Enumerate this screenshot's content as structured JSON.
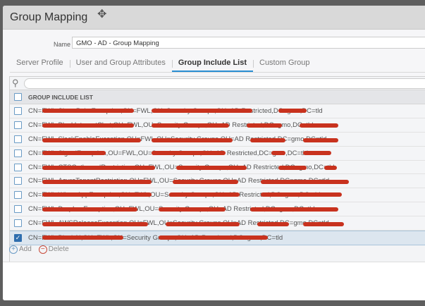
{
  "dialog": {
    "title": "Group Mapping",
    "move_icon": "move-icon"
  },
  "name": {
    "label": "Name",
    "value": "GMO - AD - Group Mapping"
  },
  "tabs": [
    {
      "label": "Server Profile",
      "active": false
    },
    {
      "label": "User and Group Attributes",
      "active": false
    },
    {
      "label": "Group Include List",
      "active": true
    },
    {
      "label": "Custom Group",
      "active": false
    }
  ],
  "table": {
    "search_placeholder": "",
    "header": "GROUP INCLUDE LIST",
    "rows": [
      {
        "text": "CN=FWL-SharePointException,OU=FWL,OU=Security Groups,OU=AD Restricted,DC=gmo,DC=tld",
        "checked": false
      },
      {
        "text": "CN=FWL-BlockInternetChat,OU=FWL,OU=Security Groups,OU=AD Restricted,DC=gmo,DC=tld",
        "checked": false
      },
      {
        "text": "CN=FWL-SlackEnableException,OU=FWL,OU=Security Groups,OU=AD Restricted,DC=gmo,DC=tld",
        "checked": false
      },
      {
        "text": "CN=FWL-SignalException,OU=FWL,OU=Security Groups,OU=AD Restricted,DC=gmo,DC=tld",
        "checked": false
      },
      {
        "text": "CN=FWL-CTSOutboundRestriction,OU=FWL,OU=Security Groups,OU=AD Restricted,DC=gmo,DC=tld",
        "checked": false
      },
      {
        "text": "CN=FWL-AzureTenantRestriction,OU=FWL,OU=Security Groups,OU=AD Restricted,DC=gmo,DC=tld",
        "checked": false
      },
      {
        "text": "CN=FWL-WhatsAppException,OU=FWL,OU=Security Groups,OU=AD Restricted,DC=gmo,DC=tld",
        "checked": false
      },
      {
        "text": "CN=FWL-DropboxException,OU=FWL,OU=Security Groups,OU=AD Restricted,DC=gmo,DC=tld",
        "checked": false
      },
      {
        "text": "CN=FWL-AWSReleaseException,OU=FWL,OU=Security Groups,OU=AD Restricted,DC=gmo,DC=tld",
        "checked": false
      },
      {
        "text": "CN=FWL-BlockAI,OU=FWL,OU=Security Groups,OU=AD Restricted,DC=gmo,DC=tld",
        "checked": true
      }
    ]
  },
  "footer": {
    "add_label": "Add",
    "delete_label": "Delete"
  },
  "colors": {
    "accent": "#2a8fd3",
    "redaction": "#c8321e",
    "selected_row": "#dce6ef"
  }
}
